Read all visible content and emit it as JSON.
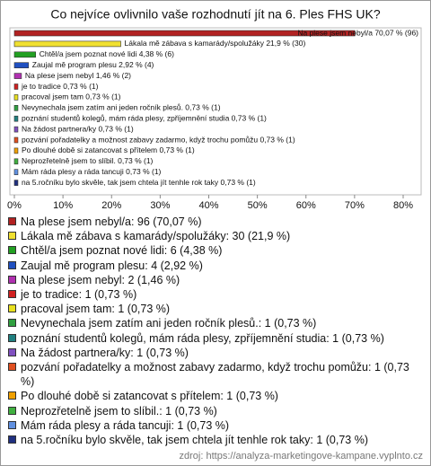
{
  "chart_data": {
    "type": "bar",
    "orientation": "horizontal",
    "title": "Co nejvíce ovlivnilo vaše rozhodnutí jít na 6. Ples FHS UK?",
    "categories": [
      "Na plese jsem nebyl/a",
      "Lákala mě zábava s kamarády/spolužáky",
      "Chtěl/a jsem poznat nové lidi",
      "Zaujal mě program plesu",
      "Na plese jsem nebyl",
      "je to tradice",
      "pracoval jsem tam",
      "Nevynechala jsem zatím ani jeden ročník plesů.",
      "poznání studentů kolegů, mám ráda plesy, zpříjemnění studia",
      "Na žádost partnera/ky",
      "pozvání pořadatelky a možnost zabavy zadarmo, když trochu pomůžu",
      "Po dlouhé době si zatancovat s přítelem",
      "Neprozřetelně jsem to slíbil.",
      "Mám ráda plesy a ráda tancuji",
      "na 5.ročníku bylo skvěle, tak jsem chtela jít tenhle rok taky"
    ],
    "values": [
      70.07,
      21.9,
      4.38,
      2.92,
      1.46,
      0.73,
      0.73,
      0.73,
      0.73,
      0.73,
      0.73,
      0.73,
      0.73,
      0.73,
      0.73
    ],
    "bar_labels": [
      "Na plese jsem nebyl/a 70,07 % (96)",
      "Lákala mě zábava s kamarády/spolužáky 21,9 % (30)",
      "Chtěl/a jsem poznat nové lidi 4,38 % (6)",
      "Zaujal mě program plesu 2,92 % (4)",
      "Na plese jsem nebyl 1,46 % (2)",
      "je to tradice 0,73 % (1)",
      "pracoval jsem tam 0,73 % (1)",
      "Nevynechala jsem zatím ani jeden ročník plesů. 0,73 % (1)",
      "poznání studentů kolegů, mám ráda plesy, zpříjemnění studia 0,73 % (1)",
      "Na žádost partnera/ky 0,73 % (1)",
      "pozvání pořadatelky a možnost zabavy zadarmo, když trochu pomůžu 0,73 % (1)",
      "Po dlouhé době si zatancovat s přítelem 0,73 % (1)",
      "Neprozřetelně jsem to slíbil. 0,73 % (1)",
      "Mám ráda plesy a ráda tancuji 0,73 % (1)",
      "na 5.ročníku bylo skvěle, tak jsem chtela jít tenhle rok taky 0,73 % (1)"
    ],
    "legend_labels": [
      "Na plese jsem nebyl/a: 96 (70,07 %)",
      "Lákala mě zábava s kamarády/spolužáky: 30 (21,9 %)",
      "Chtěl/a jsem poznat nové lidi: 6 (4,38 %)",
      "Zaujal mě program plesu: 4 (2,92 %)",
      "Na plese jsem nebyl: 2 (1,46 %)",
      "je to tradice: 1 (0,73 %)",
      "pracoval jsem tam: 1 (0,73 %)",
      "Nevynechala jsem zatím ani jeden ročník plesů.: 1 (0,73 %)",
      "poznání studentů kolegů, mám ráda plesy, zpříjemnění studia: 1 (0,73 %)",
      "Na žádost partnera/ky: 1 (0,73 %)",
      "pozvání pořadatelky a možnost zabavy zadarmo, když trochu pomůžu: 1 (0,73 %)",
      "Po dlouhé době si zatancovat s přítelem: 1 (0,73 %)",
      "Neprozřetelně jsem to slíbil.: 1 (0,73 %)",
      "Mám ráda plesy a ráda tancuji: 1 (0,73 %)",
      "na 5.ročníku bylo skvěle, tak jsem chtela jít tenhle rok taky: 1 (0,73 %)"
    ],
    "colors": [
      "#b22222",
      "#f0e030",
      "#22a022",
      "#2050c0",
      "#b030b0",
      "#d02020",
      "#e8e020",
      "#30a040",
      "#208080",
      "#8050c0",
      "#e05020",
      "#f0a000",
      "#40b040",
      "#6090e0",
      "#203080"
    ],
    "xlim": [
      0,
      80
    ],
    "xticks": [
      {
        "value": 0,
        "label": "0%"
      },
      {
        "value": 10,
        "label": "10%"
      },
      {
        "value": 20,
        "label": "20%"
      },
      {
        "value": 30,
        "label": "30%"
      },
      {
        "value": 40,
        "label": "40%"
      },
      {
        "value": 50,
        "label": "50%"
      },
      {
        "value": 60,
        "label": "60%"
      },
      {
        "value": 70,
        "label": "70%"
      },
      {
        "value": 80,
        "label": "80%"
      }
    ],
    "source": "zdroj: https://analyza-marketingove-kampane.vyplnto.cz"
  }
}
